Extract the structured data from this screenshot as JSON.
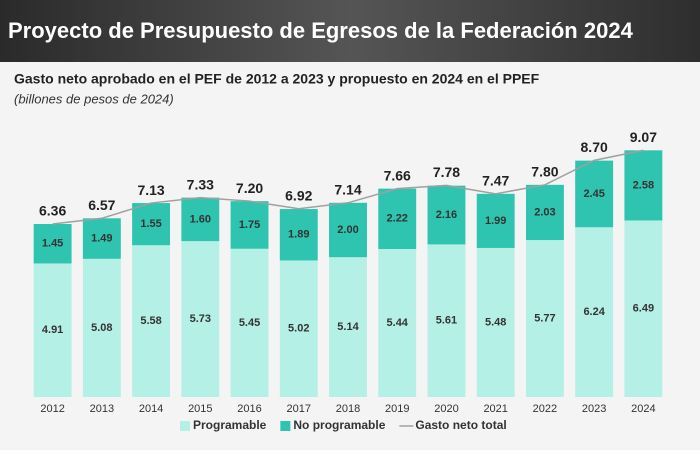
{
  "chart_data": {
    "type": "stacked-bar-line",
    "header": "Proyecto de Presupuesto de Egresos de la Federación 2024",
    "title": "Gasto neto aprobado en el PEF de 2012 a 2023 y propuesto en 2024 en el PPEF",
    "subtitle": "(billones de pesos de 2024)",
    "categories": [
      "2012",
      "2013",
      "2014",
      "2015",
      "2016",
      "2017",
      "2018",
      "2019",
      "2020",
      "2021",
      "2022",
      "2023",
      "2024"
    ],
    "series": [
      {
        "name": "Programable",
        "color": "#b5f0e6",
        "values": [
          4.91,
          5.08,
          5.58,
          5.73,
          5.45,
          5.02,
          5.14,
          5.44,
          5.61,
          5.48,
          5.77,
          6.24,
          6.49
        ],
        "value_labels": [
          "4.91",
          "5.08",
          "5.58",
          "5.73",
          "5.45",
          "5.02",
          "5.14",
          "5.44",
          "5.61",
          "5.48",
          "5.77",
          "6.24",
          "6.49"
        ]
      },
      {
        "name": "No programable",
        "color": "#2ec4b0",
        "values": [
          1.45,
          1.49,
          1.55,
          1.6,
          1.75,
          1.89,
          2.0,
          2.22,
          2.16,
          1.99,
          2.03,
          2.45,
          2.58
        ],
        "value_labels": [
          "1.45",
          "1.49",
          "1.55",
          "1.60",
          "1.75",
          "1.89",
          "2.00",
          "2.22",
          "2.16",
          "1.99",
          "2.03",
          "2.45",
          "2.58"
        ]
      },
      {
        "name": "Gasto neto total",
        "color": "#a0a0a0",
        "line": true,
        "values": [
          6.36,
          6.57,
          7.13,
          7.33,
          7.2,
          6.92,
          7.14,
          7.66,
          7.78,
          7.47,
          7.8,
          8.7,
          9.07
        ],
        "value_labels": [
          "6.36",
          "6.57",
          "7.13",
          "7.33",
          "7.20",
          "6.92",
          "7.14",
          "7.66",
          "7.78",
          "7.47",
          "7.80",
          "8.70",
          "9.07"
        ]
      }
    ]
  }
}
